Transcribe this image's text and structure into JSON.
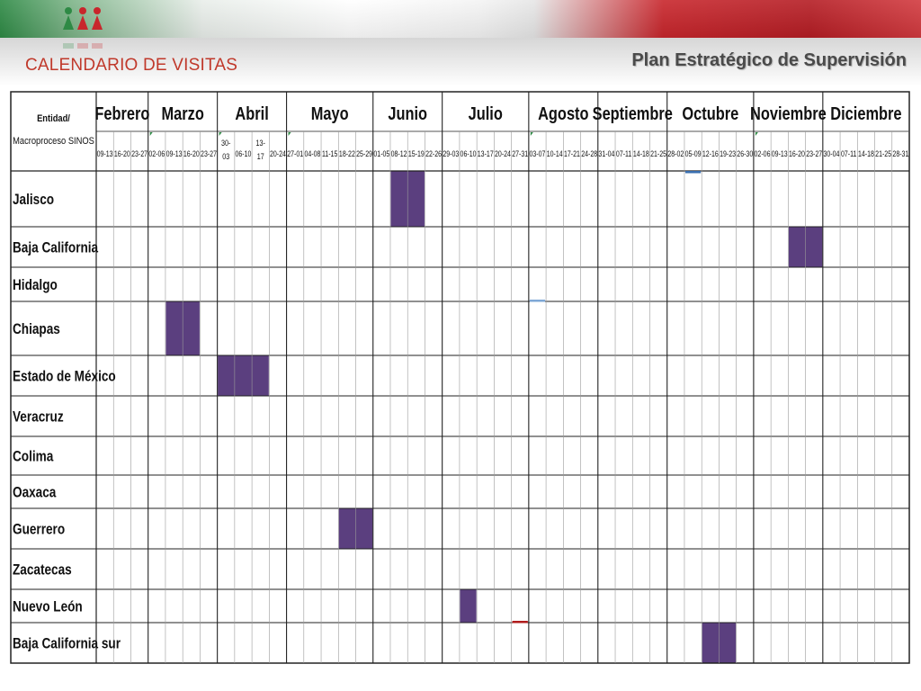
{
  "header": {
    "title": "CALENDARIO DE VISITAS",
    "section": "Plan Estratégico de Supervisión"
  },
  "table": {
    "corner_line1": "Entidad/",
    "corner_line2": "Macroproceso SINOS",
    "months": [
      {
        "name": "Febrero",
        "weeks": [
          "09-13",
          "16-20",
          "23-27"
        ]
      },
      {
        "name": "Marzo",
        "weeks": [
          "02-06",
          "09-13",
          "16-20",
          "23-27"
        ]
      },
      {
        "name": "Abril",
        "weeks": [
          "30-03",
          "06-10",
          "13-17",
          "20-24"
        ]
      },
      {
        "name": "Mayo",
        "weeks": [
          "27-01",
          "04-08",
          "11-15",
          "18-22",
          "25-29"
        ]
      },
      {
        "name": "Junio",
        "weeks": [
          "01-05",
          "08-12",
          "15-19",
          "22-26"
        ]
      },
      {
        "name": "Julio",
        "weeks": [
          "29-03",
          "06-10",
          "13-17",
          "20-24",
          "27-31"
        ]
      },
      {
        "name": "Agosto",
        "weeks": [
          "03-07",
          "10-14",
          "17-21",
          "24-28"
        ]
      },
      {
        "name": "Septiembre",
        "weeks": [
          "31-04",
          "07-11",
          "14-18",
          "21-25"
        ]
      },
      {
        "name": "Octubre",
        "weeks": [
          "28-02",
          "05-09",
          "12-16",
          "19-23",
          "26-30"
        ]
      },
      {
        "name": "Noviembre",
        "weeks": [
          "02-06",
          "09-13",
          "16-20",
          "23-27"
        ]
      },
      {
        "name": "Diciembre",
        "weeks": [
          "30-04",
          "07-11",
          "14-18",
          "21-25",
          "28-31"
        ]
      }
    ],
    "rows": [
      {
        "entity": "Jalisco",
        "visit": [
          "Junio",
          "08-12",
          "15-19"
        ]
      },
      {
        "entity": "Baja California",
        "visit": [
          "Noviembre",
          "16-20",
          "23-27"
        ]
      },
      {
        "entity": "Hidalgo",
        "visit": null
      },
      {
        "entity": "Chiapas",
        "visit": [
          "Marzo",
          "09-13",
          "16-20"
        ]
      },
      {
        "entity": "Estado de México",
        "visit": [
          "Abril",
          "30-03",
          "13-17"
        ]
      },
      {
        "entity": "Veracruz",
        "visit": null
      },
      {
        "entity": "Colima",
        "visit": null
      },
      {
        "entity": "Oaxaca",
        "visit": null
      },
      {
        "entity": "Guerrero",
        "visit": [
          "Mayo",
          "18-22",
          "25-29"
        ]
      },
      {
        "entity": "Zacatecas",
        "visit": null
      },
      {
        "entity": "Nuevo León",
        "visit": [
          "Julio",
          "06-10",
          "06-10"
        ]
      },
      {
        "entity": "Baja California sur",
        "visit": [
          "Octubre",
          "12-16",
          "19-23"
        ]
      }
    ]
  },
  "colors": {
    "visit_fill": "#5b3f7f",
    "grid_line": "#555555",
    "title_red": "#c0392b"
  }
}
